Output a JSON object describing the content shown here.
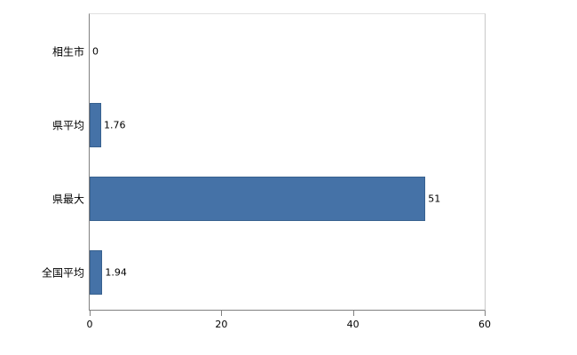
{
  "chart_data": {
    "type": "bar",
    "orientation": "horizontal",
    "title": "",
    "xlabel": "",
    "ylabel": "",
    "categories": [
      "相生市",
      "県平均",
      "県最大",
      "全国平均"
    ],
    "values": [
      0,
      1.76,
      51,
      1.94
    ],
    "value_labels": [
      "0",
      "1.76",
      "51",
      "1.94"
    ],
    "xlim": [
      0,
      60
    ],
    "xticks": [
      0,
      20,
      40,
      60
    ],
    "grid": false,
    "legend": "none",
    "bar_color": "#4572a7",
    "bar_border_color": "#38618f"
  }
}
